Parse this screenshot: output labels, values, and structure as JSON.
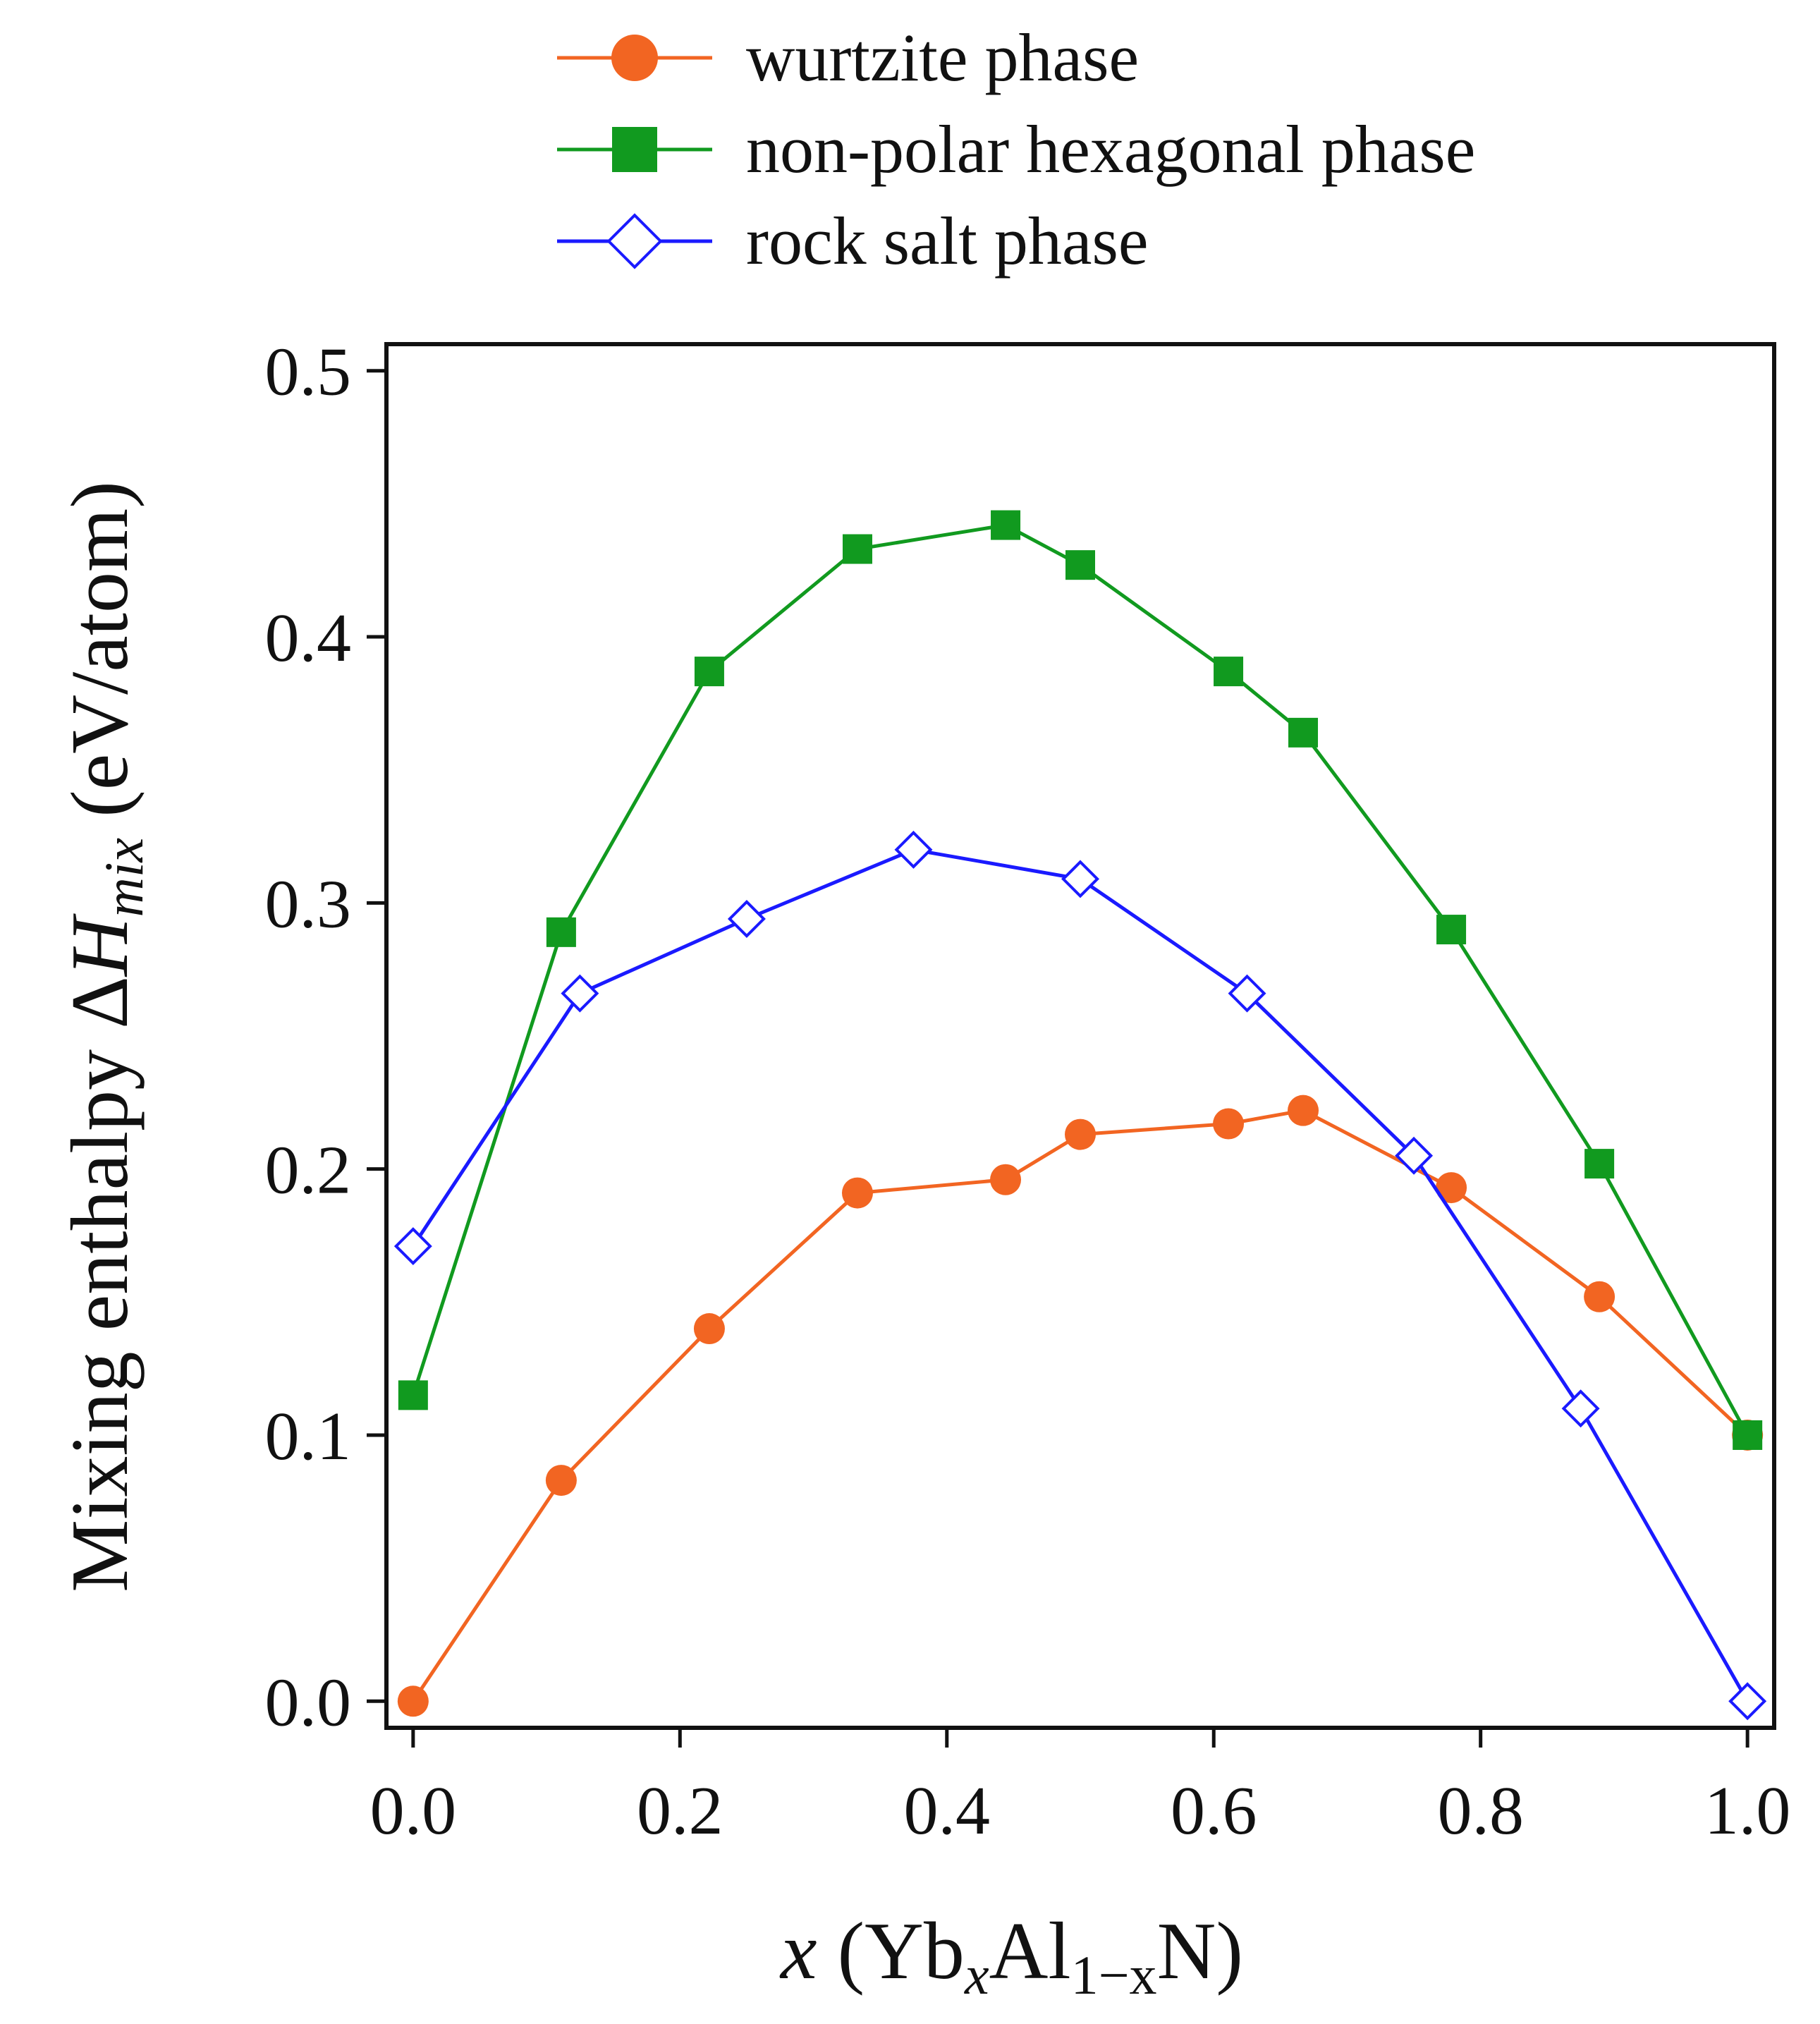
{
  "chart_data": {
    "type": "line",
    "xlabel_parts": {
      "var": "x",
      "open": " (Yb",
      "sub1": "x",
      "mid": "Al",
      "sub2": "1−x",
      "close": "N)"
    },
    "ylabel_parts": {
      "main": "Mixing enthalpy Δ",
      "var": "H",
      "sub": "mix",
      "unit": " (eV/atom)"
    },
    "xlim": [
      -0.02,
      1.02
    ],
    "ylim": [
      -0.01,
      0.51
    ],
    "xticks": [
      0.0,
      0.2,
      0.4,
      0.6,
      0.8,
      1.0
    ],
    "xtick_labels": [
      "0.0",
      "0.2",
      "0.4",
      "0.6",
      "0.8",
      "1.0"
    ],
    "yticks": [
      0.0,
      0.1,
      0.2,
      0.3,
      0.4,
      0.5
    ],
    "ytick_labels": [
      "0.0",
      "0.1",
      "0.2",
      "0.3",
      "0.4",
      "0.5"
    ],
    "legend_position": "above-plot",
    "grid": false,
    "series": [
      {
        "name": "wurtzite phase",
        "color": "#f26522",
        "marker": "circle",
        "x": [
          0.0,
          0.111,
          0.222,
          0.333,
          0.444,
          0.5,
          0.611,
          0.667,
          0.778,
          0.889,
          1.0
        ],
        "y": [
          0.0,
          0.083,
          0.14,
          0.191,
          0.196,
          0.213,
          0.217,
          0.222,
          0.193,
          0.152,
          0.1
        ]
      },
      {
        "name": "non-polar hexagonal phase",
        "color": "#119a1f",
        "marker": "square",
        "x": [
          0.0,
          0.111,
          0.222,
          0.333,
          0.444,
          0.5,
          0.611,
          0.667,
          0.778,
          0.889,
          1.0
        ],
        "y": [
          0.115,
          0.289,
          0.387,
          0.433,
          0.442,
          0.427,
          0.387,
          0.364,
          0.29,
          0.202,
          0.1
        ]
      },
      {
        "name": "rock salt phase",
        "color": "#1a1aff",
        "marker": "diamond-open",
        "x": [
          0.0,
          0.125,
          0.25,
          0.375,
          0.5,
          0.625,
          0.75,
          0.875,
          1.0
        ],
        "y": [
          0.171,
          0.266,
          0.294,
          0.32,
          0.309,
          0.266,
          0.205,
          0.11,
          0.0
        ]
      }
    ]
  }
}
